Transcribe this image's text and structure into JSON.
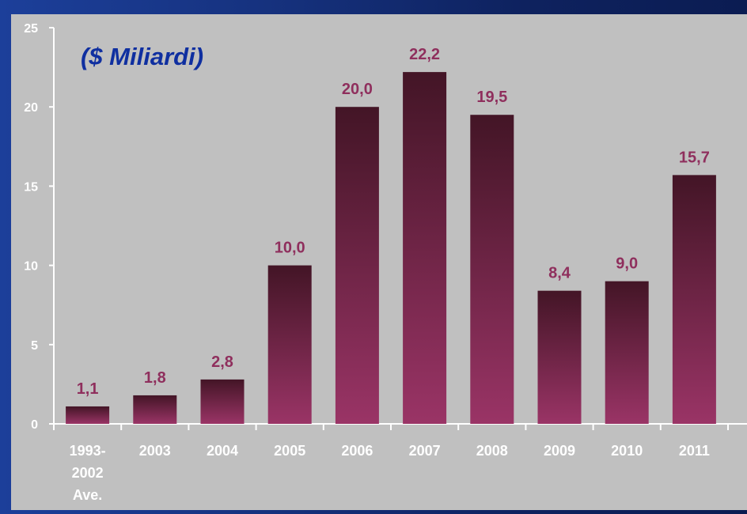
{
  "colors": {
    "plot_bg": "#c0c0c0",
    "bar_top": "#431526",
    "bar_bottom": "#9a3466",
    "value_label": "#8f2f5d",
    "subtitle": "#0f2fa0",
    "axis": "#ffffff"
  },
  "chart_data": {
    "type": "bar",
    "title": "",
    "subtitle": "($ Miliardi)",
    "xlabel": "",
    "ylabel": "",
    "ylim": [
      0,
      25
    ],
    "yticks": [
      0,
      5,
      10,
      15,
      20,
      25
    ],
    "grid": false,
    "categories": [
      [
        "1993-",
        "2002",
        "Ave."
      ],
      [
        "2003"
      ],
      [
        "2004"
      ],
      [
        "2005"
      ],
      [
        "2006"
      ],
      [
        "2007"
      ],
      [
        "2008"
      ],
      [
        "2009"
      ],
      [
        "2010"
      ],
      [
        "2011"
      ]
    ],
    "values": [
      1.1,
      1.8,
      2.8,
      10.0,
      20.0,
      22.2,
      19.5,
      8.4,
      9.0,
      15.7
    ],
    "data_labels": [
      "1,1",
      "1,8",
      "2,8",
      "10,0",
      "20,0",
      "22,2",
      "19,5",
      "8,4",
      "9,0",
      "15,7"
    ]
  }
}
